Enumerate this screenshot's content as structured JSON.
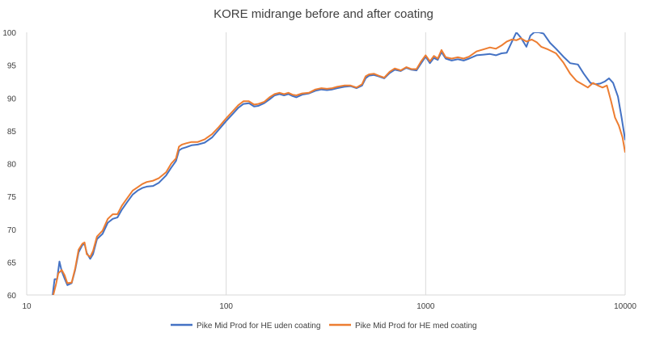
{
  "chart_data": {
    "type": "line",
    "title": "KORE midrange before and after coating",
    "xlabel": "",
    "ylabel": "",
    "xscale": "log",
    "xlim": [
      10,
      10000
    ],
    "ylim": [
      60,
      100
    ],
    "xticks": [
      10,
      100,
      1000,
      10000
    ],
    "xtick_labels": [
      "10",
      "100",
      "1000",
      "10000"
    ],
    "yticks": [
      60,
      65,
      70,
      75,
      80,
      85,
      90,
      95,
      100
    ],
    "ytick_labels": [
      "60",
      "65",
      "70",
      "75",
      "80",
      "85",
      "90",
      "95",
      "100"
    ],
    "grid": "vertical",
    "legend_position": "bottom",
    "series": [
      {
        "name": "Pike Mid Prod for HE uden coating",
        "color": "#4472C4",
        "points": [
          [
            13.5,
            60
          ],
          [
            13.8,
            62.4
          ],
          [
            14.2,
            62.4
          ],
          [
            14.6,
            65.1
          ],
          [
            15,
            63.6
          ],
          [
            15.5,
            62.5
          ],
          [
            16,
            61.5
          ],
          [
            16.8,
            61.8
          ],
          [
            17.5,
            63.8
          ],
          [
            18.2,
            66.5
          ],
          [
            19,
            67.6
          ],
          [
            19.5,
            67.8
          ],
          [
            20,
            66.4
          ],
          [
            20.8,
            65.5
          ],
          [
            21.5,
            66.2
          ],
          [
            22.5,
            68.5
          ],
          [
            24,
            69.3
          ],
          [
            25.5,
            71
          ],
          [
            27,
            71.6
          ],
          [
            28.5,
            71.8
          ],
          [
            30,
            73
          ],
          [
            32,
            74.2
          ],
          [
            34,
            75.3
          ],
          [
            36,
            75.9
          ],
          [
            38,
            76.3
          ],
          [
            40,
            76.5
          ],
          [
            43,
            76.6
          ],
          [
            46,
            77.1
          ],
          [
            50,
            78.2
          ],
          [
            53,
            79.4
          ],
          [
            56,
            80.4
          ],
          [
            58,
            82
          ],
          [
            60,
            82.3
          ],
          [
            63,
            82.5
          ],
          [
            67,
            82.8
          ],
          [
            72,
            82.9
          ],
          [
            78,
            83.2
          ],
          [
            85,
            84
          ],
          [
            92,
            85.2
          ],
          [
            100,
            86.5
          ],
          [
            108,
            87.6
          ],
          [
            115,
            88.5
          ],
          [
            122,
            89.1
          ],
          [
            130,
            89.2
          ],
          [
            138,
            88.7
          ],
          [
            145,
            88.8
          ],
          [
            155,
            89.2
          ],
          [
            165,
            89.8
          ],
          [
            175,
            90.4
          ],
          [
            185,
            90.6
          ],
          [
            195,
            90.4
          ],
          [
            205,
            90.6
          ],
          [
            215,
            90.3
          ],
          [
            225,
            90.1
          ],
          [
            240,
            90.5
          ],
          [
            260,
            90.7
          ],
          [
            280,
            91.1
          ],
          [
            300,
            91.3
          ],
          [
            320,
            91.2
          ],
          [
            340,
            91.3
          ],
          [
            360,
            91.5
          ],
          [
            390,
            91.7
          ],
          [
            420,
            91.8
          ],
          [
            450,
            91.5
          ],
          [
            480,
            91.9
          ],
          [
            500,
            93
          ],
          [
            520,
            93.4
          ],
          [
            550,
            93.5
          ],
          [
            580,
            93.3
          ],
          [
            620,
            93
          ],
          [
            660,
            93.8
          ],
          [
            700,
            94.3
          ],
          [
            750,
            94.1
          ],
          [
            800,
            94.6
          ],
          [
            850,
            94.3
          ],
          [
            900,
            94.2
          ],
          [
            950,
            95.3
          ],
          [
            1000,
            96.3
          ],
          [
            1050,
            95.3
          ],
          [
            1100,
            96.1
          ],
          [
            1150,
            95.8
          ],
          [
            1200,
            97
          ],
          [
            1260,
            96
          ],
          [
            1350,
            95.7
          ],
          [
            1450,
            95.9
          ],
          [
            1550,
            95.7
          ],
          [
            1650,
            96
          ],
          [
            1800,
            96.5
          ],
          [
            1950,
            96.6
          ],
          [
            2100,
            96.7
          ],
          [
            2250,
            96.5
          ],
          [
            2400,
            96.8
          ],
          [
            2550,
            96.9
          ],
          [
            2700,
            98.5
          ],
          [
            2850,
            100
          ],
          [
            3000,
            99.2
          ],
          [
            3200,
            97.8
          ],
          [
            3350,
            99.5
          ],
          [
            3500,
            100
          ],
          [
            3700,
            100
          ],
          [
            3900,
            99.8
          ],
          [
            4200,
            98.4
          ],
          [
            4500,
            97.5
          ],
          [
            4900,
            96.3
          ],
          [
            5300,
            95.3
          ],
          [
            5800,
            95.1
          ],
          [
            6200,
            93.7
          ],
          [
            6700,
            92.3
          ],
          [
            7100,
            92.1
          ],
          [
            7500,
            92.2
          ],
          [
            7900,
            92.5
          ],
          [
            8300,
            93
          ],
          [
            8700,
            92.3
          ],
          [
            9200,
            90.2
          ],
          [
            9600,
            87
          ],
          [
            10000,
            83.6
          ]
        ]
      },
      {
        "name": "Pike Mid Prod for HE med coating",
        "color": "#ED7D31",
        "points": [
          [
            13.6,
            60
          ],
          [
            14,
            61.5
          ],
          [
            14.4,
            63.3
          ],
          [
            15,
            63.8
          ],
          [
            15.5,
            63
          ],
          [
            16,
            61.8
          ],
          [
            16.8,
            61.9
          ],
          [
            17.5,
            64
          ],
          [
            18.2,
            66.9
          ],
          [
            19,
            67.8
          ],
          [
            19.5,
            68
          ],
          [
            20,
            66.2
          ],
          [
            20.8,
            65.8
          ],
          [
            21.5,
            66.7
          ],
          [
            22.5,
            68.9
          ],
          [
            24,
            69.8
          ],
          [
            25.5,
            71.6
          ],
          [
            27,
            72.3
          ],
          [
            28.5,
            72.3
          ],
          [
            30,
            73.6
          ],
          [
            32,
            74.8
          ],
          [
            34,
            75.9
          ],
          [
            36,
            76.4
          ],
          [
            38,
            76.9
          ],
          [
            40,
            77.2
          ],
          [
            43,
            77.4
          ],
          [
            46,
            77.8
          ],
          [
            50,
            78.7
          ],
          [
            53,
            80
          ],
          [
            56,
            80.8
          ],
          [
            58,
            82.6
          ],
          [
            60,
            82.9
          ],
          [
            63,
            83.1
          ],
          [
            67,
            83.3
          ],
          [
            72,
            83.3
          ],
          [
            78,
            83.7
          ],
          [
            85,
            84.5
          ],
          [
            92,
            85.6
          ],
          [
            100,
            86.9
          ],
          [
            108,
            88
          ],
          [
            115,
            88.9
          ],
          [
            122,
            89.5
          ],
          [
            130,
            89.5
          ],
          [
            138,
            89
          ],
          [
            145,
            89.1
          ],
          [
            155,
            89.4
          ],
          [
            165,
            90.1
          ],
          [
            175,
            90.6
          ],
          [
            185,
            90.8
          ],
          [
            195,
            90.6
          ],
          [
            205,
            90.8
          ],
          [
            215,
            90.5
          ],
          [
            225,
            90.4
          ],
          [
            240,
            90.7
          ],
          [
            260,
            90.8
          ],
          [
            280,
            91.3
          ],
          [
            300,
            91.5
          ],
          [
            320,
            91.4
          ],
          [
            340,
            91.5
          ],
          [
            360,
            91.7
          ],
          [
            390,
            91.9
          ],
          [
            420,
            91.9
          ],
          [
            450,
            91.6
          ],
          [
            480,
            92.1
          ],
          [
            500,
            93.3
          ],
          [
            520,
            93.6
          ],
          [
            550,
            93.7
          ],
          [
            580,
            93.4
          ],
          [
            620,
            93.1
          ],
          [
            660,
            94
          ],
          [
            700,
            94.5
          ],
          [
            750,
            94.2
          ],
          [
            800,
            94.7
          ],
          [
            850,
            94.4
          ],
          [
            900,
            94.4
          ],
          [
            950,
            95.6
          ],
          [
            1000,
            96.5
          ],
          [
            1050,
            95.6
          ],
          [
            1100,
            96.4
          ],
          [
            1150,
            96
          ],
          [
            1200,
            97.3
          ],
          [
            1260,
            96.2
          ],
          [
            1350,
            96
          ],
          [
            1450,
            96.2
          ],
          [
            1550,
            96
          ],
          [
            1650,
            96.3
          ],
          [
            1800,
            97.1
          ],
          [
            1950,
            97.4
          ],
          [
            2100,
            97.7
          ],
          [
            2250,
            97.5
          ],
          [
            2400,
            98
          ],
          [
            2550,
            98.6
          ],
          [
            2700,
            98.9
          ],
          [
            2850,
            98.8
          ],
          [
            3000,
            99.1
          ],
          [
            3200,
            98.6
          ],
          [
            3400,
            98.9
          ],
          [
            3600,
            98.5
          ],
          [
            3800,
            97.8
          ],
          [
            4100,
            97.4
          ],
          [
            4500,
            96.8
          ],
          [
            4900,
            95.4
          ],
          [
            5300,
            93.7
          ],
          [
            5700,
            92.6
          ],
          [
            6100,
            92.1
          ],
          [
            6500,
            91.6
          ],
          [
            6900,
            92.3
          ],
          [
            7300,
            91.9
          ],
          [
            7700,
            91.6
          ],
          [
            8100,
            91.9
          ],
          [
            8500,
            89.5
          ],
          [
            8900,
            87
          ],
          [
            9300,
            85.8
          ],
          [
            9700,
            84
          ],
          [
            10000,
            81.7
          ]
        ]
      }
    ]
  }
}
